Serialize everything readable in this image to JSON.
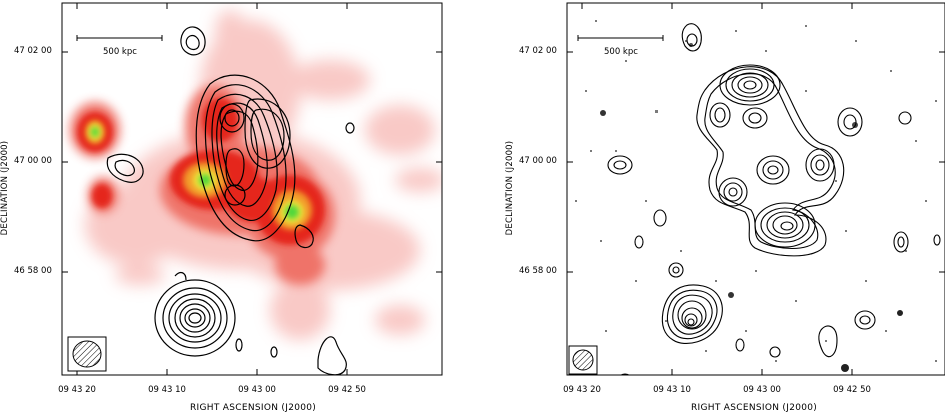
{
  "panels": [
    {
      "id": "left",
      "scale_bar_label": "500 kpc",
      "x_axis_label": "RIGHT ASCENSION  (J2000)",
      "y_axis_label": "DECLINATION  (J2000)",
      "x_ticks": [
        "09 43 20",
        "09 43 10",
        "09 43 00",
        "09 42 50"
      ],
      "y_ticks": [
        "47 02 00",
        "47 00 00",
        "46 58 00"
      ],
      "background": "X-ray colour image (red-yellow-green)"
    },
    {
      "id": "right",
      "scale_bar_label": "500 kpc",
      "x_axis_label": "RIGHT ASCENSION  (J2000)",
      "y_axis_label": "DECLINATION  (J2000)",
      "x_ticks": [
        "09 43 20",
        "09 43 10",
        "09 43 00",
        "09 42 50"
      ],
      "y_ticks": [
        "47 02 00",
        "47 00 00",
        "46 58 00"
      ],
      "background": "optical greyscale image"
    }
  ],
  "colors": {
    "xray_red": "#e8322a",
    "xray_yellow": "#f2e33a",
    "xray_green": "#4fd83a",
    "contour": "#000000"
  }
}
